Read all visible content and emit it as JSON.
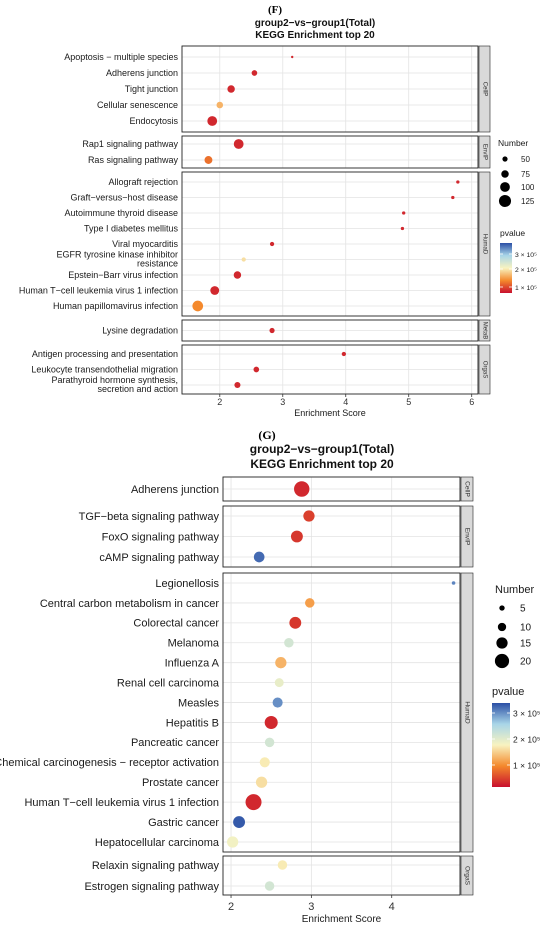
{
  "chart_data": [
    {
      "type": "scatter",
      "panel_label": "(F)",
      "title_line1": "group2−vs−group1(Total)",
      "title_line2": "KEGG Enrichment top 20",
      "xlabel": "Enrichment Score",
      "xlim": [
        1.4,
        6.1
      ],
      "xticks": [
        "2",
        "3",
        "4",
        "5",
        "6"
      ],
      "xtick_values": [
        2,
        3,
        4,
        5,
        6
      ],
      "grid": true,
      "legend_position": "right",
      "size_legend_title": "Number",
      "size_legend": [
        {
          "label": "50",
          "value": 50
        },
        {
          "label": "75",
          "value": 75
        },
        {
          "label": "100",
          "value": 100
        },
        {
          "label": "125",
          "value": 125
        }
      ],
      "size_range": [
        20,
        135
      ],
      "color_legend_title": "pvalue",
      "color_legend_labels": [
        "3 × 10⁵",
        "2 × 10⁵",
        "1 × 10⁵"
      ],
      "colors": {
        "low": "#c8102e",
        "mid": "#f8f3c0",
        "high": "#2b4fa5"
      },
      "facets": [
        {
          "strip": "CellP",
          "rows": [
            {
              "label": "Apoptosis − multiple species",
              "x": 3.15,
              "n": 20,
              "c": 0.05
            },
            {
              "label": "Adherens junction",
              "x": 2.55,
              "n": 55,
              "c": 0.05
            },
            {
              "label": "Tight junction",
              "x": 2.18,
              "n": 75,
              "c": 0.05
            },
            {
              "label": "Cellular senescence",
              "x": 2.0,
              "n": 65,
              "c": 0.35
            },
            {
              "label": "Endocytosis",
              "x": 1.88,
              "n": 100,
              "c": 0.05
            }
          ]
        },
        {
          "strip": "EnvIP",
          "rows": [
            {
              "label": "Rap1 signaling pathway",
              "x": 2.3,
              "n": 100,
              "c": 0.05
            },
            {
              "label": "Ras signaling pathway",
              "x": 1.82,
              "n": 80,
              "c": 0.2
            }
          ]
        },
        {
          "strip": "HumaD",
          "rows": [
            {
              "label": "Allograft rejection",
              "x": 5.78,
              "n": 30,
              "c": 0.05
            },
            {
              "label": "Graft−versus−host disease",
              "x": 5.7,
              "n": 30,
              "c": 0.05
            },
            {
              "label": "Autoimmune thyroid disease",
              "x": 4.92,
              "n": 30,
              "c": 0.05
            },
            {
              "label": "Type I diabetes mellitus",
              "x": 4.9,
              "n": 30,
              "c": 0.05
            },
            {
              "label": "Viral myocarditis",
              "x": 2.83,
              "n": 40,
              "c": 0.05
            },
            {
              "label": "EGFR tyrosine kinase inhibitor resistance",
              "x": 2.38,
              "n": 40,
              "c": 0.45
            },
            {
              "label": "Epstein−Barr virus infection",
              "x": 2.28,
              "n": 75,
              "c": 0.05
            },
            {
              "label": "Human T−cell leukemia virus 1 infection",
              "x": 1.92,
              "n": 90,
              "c": 0.05
            },
            {
              "label": "Human papillomavirus infection",
              "x": 1.65,
              "n": 110,
              "c": 0.25
            }
          ]
        },
        {
          "strip": "MetaB",
          "rows": [
            {
              "label": "Lysine degradation",
              "x": 2.83,
              "n": 50,
              "c": 0.05
            }
          ]
        },
        {
          "strip": "OrgaS",
          "rows": [
            {
              "label": "Antigen processing and presentation",
              "x": 3.97,
              "n": 40,
              "c": 0.05
            },
            {
              "label": "Leukocyte transendothelial migration",
              "x": 2.58,
              "n": 55,
              "c": 0.05
            },
            {
              "label": "Parathyroid hormone synthesis, secretion and action",
              "x": 2.28,
              "n": 60,
              "c": 0.05
            }
          ]
        }
      ]
    },
    {
      "type": "scatter",
      "panel_label": "(G)",
      "title_line1": "group2−vs−group1(Total)",
      "title_line2": "KEGG Enrichment top 20",
      "xlabel": "Enrichment Score",
      "xlim": [
        1.9,
        4.85
      ],
      "xticks": [
        "2",
        "3",
        "4"
      ],
      "xtick_values": [
        2,
        3,
        4
      ],
      "grid": true,
      "legend_position": "right",
      "size_legend_title": "Number",
      "size_legend": [
        {
          "label": "5",
          "value": 5
        },
        {
          "label": "10",
          "value": 10
        },
        {
          "label": "15",
          "value": 15
        },
        {
          "label": "20",
          "value": 20
        }
      ],
      "size_range": [
        1,
        23
      ],
      "color_legend_title": "pvalue",
      "color_legend_labels": [
        "3 × 10⁵",
        "2 × 10⁵",
        "1 × 10⁵"
      ],
      "colors": {
        "low": "#c8102e",
        "mid": "#f8f3c0",
        "high": "#2b4fa5"
      },
      "facets": [
        {
          "strip": "CellP",
          "rows": [
            {
              "label": "Adherens junction",
              "x": 2.88,
              "n": 22,
              "c": 0.05
            }
          ]
        },
        {
          "strip": "EnvIP",
          "rows": [
            {
              "label": "TGF−beta signaling pathway",
              "x": 2.97,
              "n": 15,
              "c": 0.1
            },
            {
              "label": "FoxO signaling pathway",
              "x": 2.82,
              "n": 16,
              "c": 0.08
            },
            {
              "label": "cAMP signaling pathway",
              "x": 2.35,
              "n": 14,
              "c": 0.95
            }
          ]
        },
        {
          "strip": "HumaD",
          "rows": [
            {
              "label": "Legionellosis",
              "x": 4.77,
              "n": 2,
              "c": 0.9
            },
            {
              "label": "Central carbon metabolism in cancer",
              "x": 2.98,
              "n": 12,
              "c": 0.3
            },
            {
              "label": "Colorectal cancer",
              "x": 2.8,
              "n": 16,
              "c": 0.08
            },
            {
              "label": "Melanoma",
              "x": 2.72,
              "n": 12,
              "c": 0.62
            },
            {
              "label": "Influenza A",
              "x": 2.62,
              "n": 15,
              "c": 0.35
            },
            {
              "label": "Renal cell carcinoma",
              "x": 2.6,
              "n": 11,
              "c": 0.55
            },
            {
              "label": "Measles",
              "x": 2.58,
              "n": 13,
              "c": 0.88
            },
            {
              "label": "Hepatitis B",
              "x": 2.5,
              "n": 18,
              "c": 0.05
            },
            {
              "label": "Pancreatic cancer",
              "x": 2.48,
              "n": 12,
              "c": 0.62
            },
            {
              "label": "Chemical carcinogenesis − receptor activation",
              "x": 2.42,
              "n": 13,
              "c": 0.48
            },
            {
              "label": "Prostate cancer",
              "x": 2.38,
              "n": 15,
              "c": 0.45
            },
            {
              "label": "Human T−cell leukemia virus 1 infection",
              "x": 2.28,
              "n": 23,
              "c": 0.05
            },
            {
              "label": "Gastric cancer",
              "x": 2.1,
              "n": 16,
              "c": 0.98
            },
            {
              "label": "Hepatocellular carcinoma",
              "x": 2.02,
              "n": 15,
              "c": 0.52
            }
          ]
        },
        {
          "strip": "OrgaS",
          "rows": [
            {
              "label": "Relaxin signaling pathway",
              "x": 2.64,
              "n": 12,
              "c": 0.48
            },
            {
              "label": "Estrogen signaling pathway",
              "x": 2.48,
              "n": 12,
              "c": 0.62
            }
          ]
        }
      ]
    }
  ]
}
